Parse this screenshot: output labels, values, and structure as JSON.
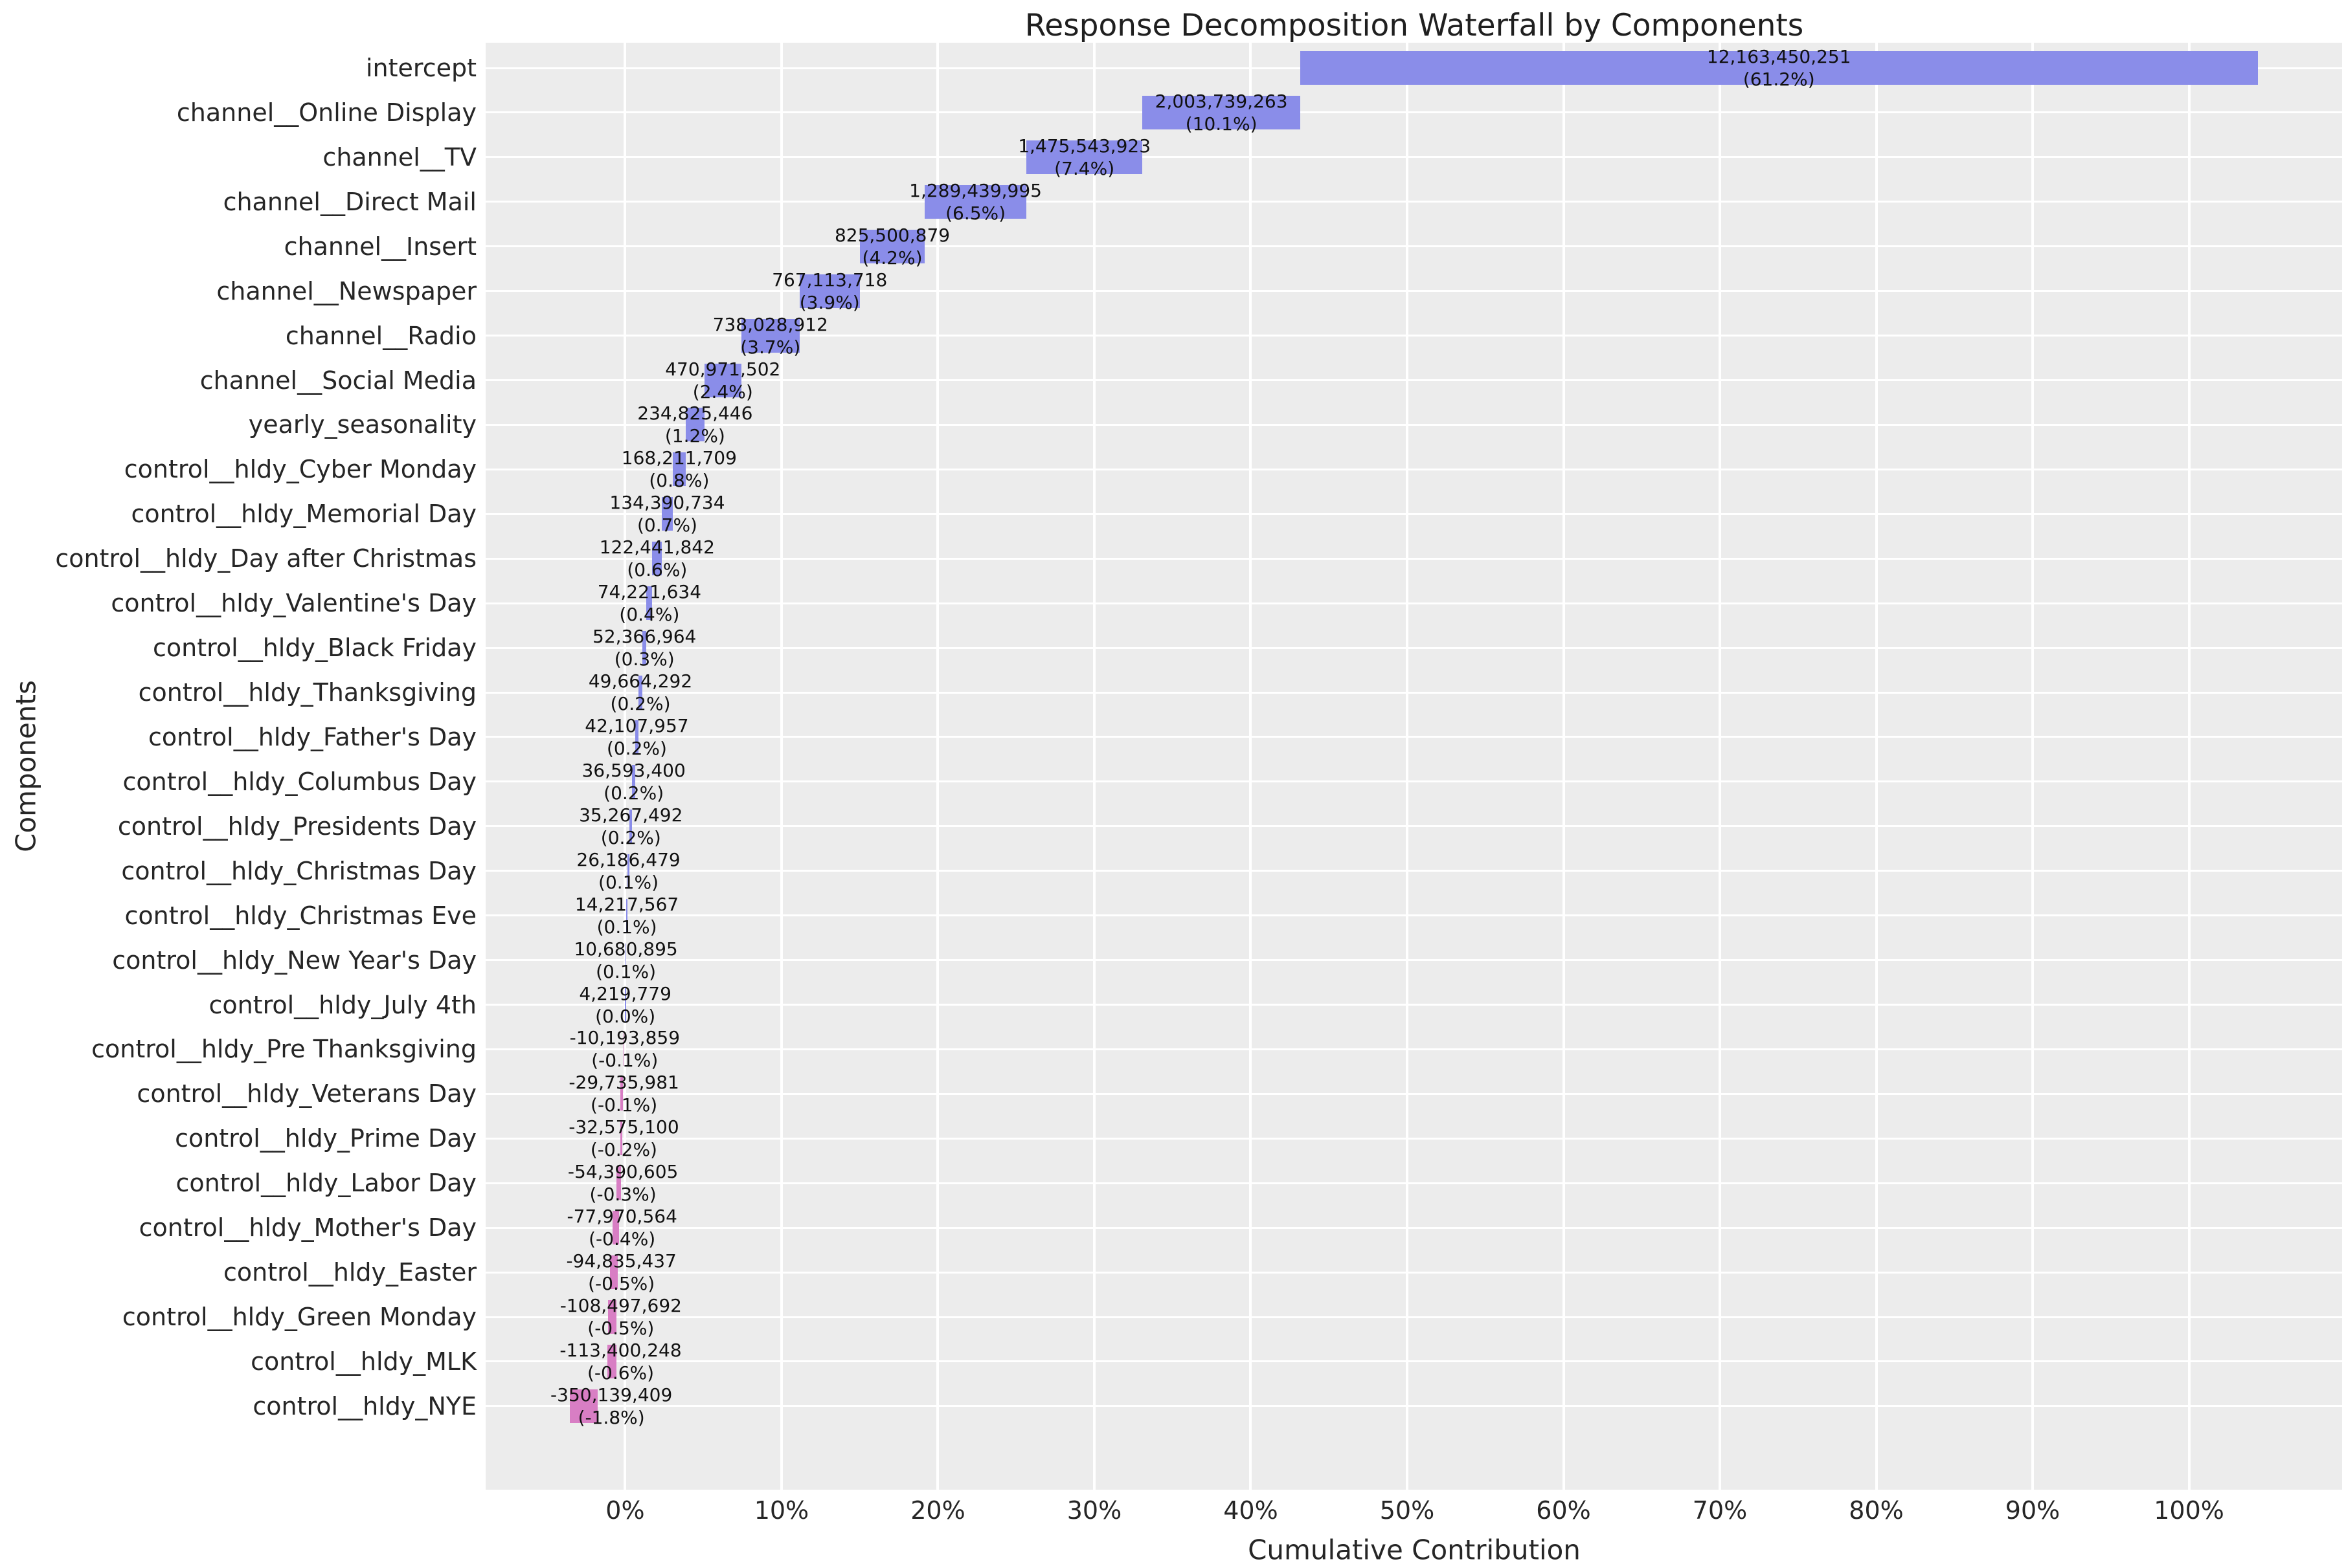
{
  "chart": {
    "title": "Response Decomposition Waterfall by Components",
    "xlabel": "Cumulative Contribution",
    "ylabel": "Components",
    "x_ticks": [
      "0%",
      "10%",
      "20%",
      "30%",
      "40%",
      "50%",
      "60%",
      "70%",
      "80%",
      "90%",
      "100%"
    ],
    "colors": {
      "positive_bar": "#8a8de9",
      "negative_bar": "#d87ec4",
      "panel_background": "#ececec",
      "gridline": "#ffffff",
      "text": "#262626"
    }
  },
  "chart_data": {
    "type": "bar",
    "subtype": "horizontal-waterfall",
    "title": "Response Decomposition Waterfall by Components",
    "xlabel": "Cumulative Contribution",
    "ylabel": "Components",
    "x_tick_labels": [
      "0%",
      "10%",
      "20%",
      "30%",
      "40%",
      "50%",
      "60%",
      "70%",
      "80%",
      "90%",
      "100%"
    ],
    "xlim_pct": [
      -8.92,
      109.79
    ],
    "grid": "on",
    "legend": "none",
    "categories": [
      "intercept",
      "channel__Online Display",
      "channel__TV",
      "channel__Direct Mail",
      "channel__Insert",
      "channel__Newspaper",
      "channel__Radio",
      "channel__Social Media",
      "yearly_seasonality",
      "control__hldy_Cyber Monday",
      "control__hldy_Memorial Day",
      "control__hldy_Day after Christmas",
      "control__hldy_Valentine's Day",
      "control__hldy_Black Friday",
      "control__hldy_Thanksgiving",
      "control__hldy_Father's Day",
      "control__hldy_Columbus Day",
      "control__hldy_Presidents Day",
      "control__hldy_Christmas Day",
      "control__hldy_Christmas Eve",
      "control__hldy_New Year's Day",
      "control__hldy_July 4th",
      "control__hldy_Pre Thanksgiving",
      "control__hldy_Veterans Day",
      "control__hldy_Prime Day",
      "control__hldy_Labor Day",
      "control__hldy_Mother's Day",
      "control__hldy_Easter",
      "control__hldy_Green Monday",
      "control__hldy_MLK",
      "control__hldy_NYE"
    ],
    "values": [
      12163450251,
      2003739263,
      1475543923,
      1289439995,
      825500879,
      767113718,
      738028912,
      470971502,
      234825446,
      168211709,
      134390734,
      122441842,
      74221634,
      52366964,
      49664292,
      42107957,
      36593400,
      35267492,
      26186479,
      14217567,
      10680895,
      4219779,
      -10193859,
      -29735981,
      -32575100,
      -54390605,
      -77970564,
      -94835437,
      -108497692,
      -113400248,
      -350139409
    ],
    "value_labels": [
      "12,163,450,251",
      "2,003,739,263",
      "1,475,543,923",
      "1,289,439,995",
      "825,500,879",
      "767,113,718",
      "738,028,912",
      "470,971,502",
      "234,825,446",
      "168,211,709",
      "134,390,734",
      "122,441,842",
      "74,221,634",
      "52,366,964",
      "49,664,292",
      "42,107,957",
      "36,593,400",
      "35,267,492",
      "26,186,479",
      "14,217,567",
      "10,680,895",
      "4,219,779",
      "-10,193,859",
      "-29,735,981",
      "-32,575,100",
      "-54,390,605",
      "-77,970,564",
      "-94,835,437",
      "-108,497,692",
      "-113,400,248",
      "-350,139,409"
    ],
    "pct_labels": [
      "(61.2%)",
      "(10.1%)",
      "(7.4%)",
      "(6.5%)",
      "(4.2%)",
      "(3.9%)",
      "(3.7%)",
      "(2.4%)",
      "(1.2%)",
      "(0.8%)",
      "(0.7%)",
      "(0.6%)",
      "(0.4%)",
      "(0.3%)",
      "(0.2%)",
      "(0.2%)",
      "(0.2%)",
      "(0.2%)",
      "(0.1%)",
      "(0.1%)",
      "(0.1%)",
      "(0.0%)",
      "(-0.1%)",
      "(-0.1%)",
      "(-0.2%)",
      "(-0.3%)",
      "(-0.4%)",
      "(-0.5%)",
      "(-0.5%)",
      "(-0.6%)",
      "(-1.8%)"
    ]
  }
}
